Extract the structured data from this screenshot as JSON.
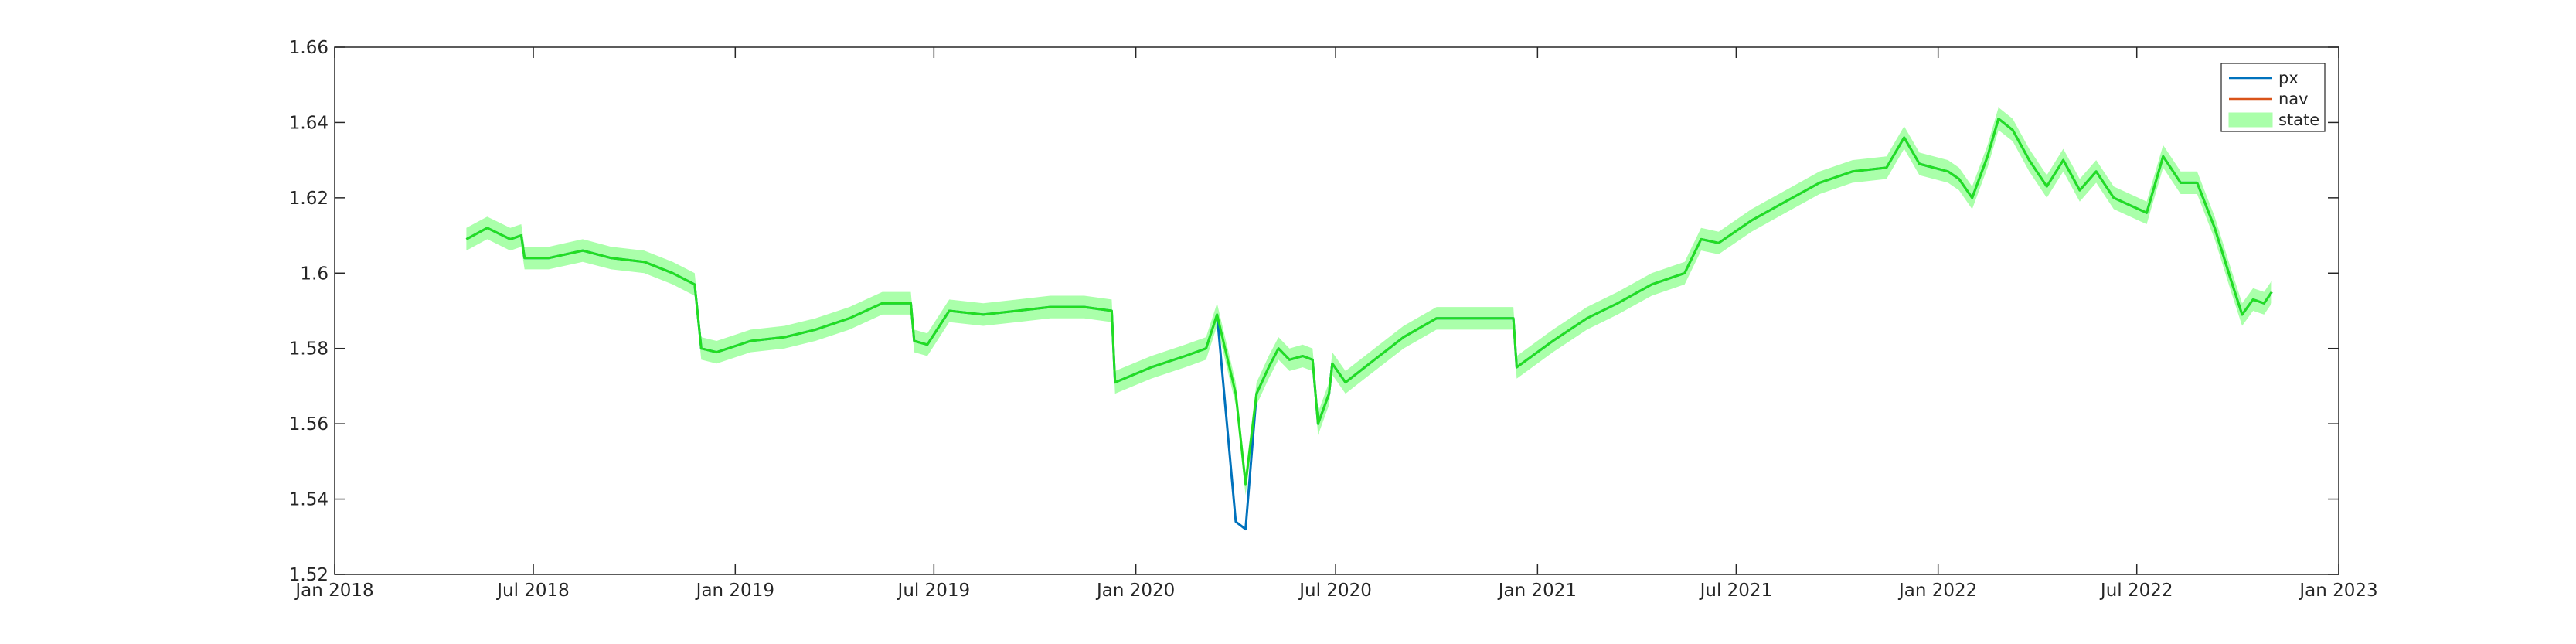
{
  "chart_data": {
    "type": "line",
    "title": "",
    "xlabel": "",
    "ylabel": "",
    "grid": false,
    "legend_placement": "top-right",
    "xlim": [
      "2018-01-01",
      "2023-01-01"
    ],
    "ylim": [
      1.52,
      1.66
    ],
    "x_ticks": [
      {
        "date": "2018-01-01",
        "label": "Jan 2018"
      },
      {
        "date": "2018-07-01",
        "label": "Jul 2018"
      },
      {
        "date": "2019-01-01",
        "label": "Jan 2019"
      },
      {
        "date": "2019-07-01",
        "label": "Jul 2019"
      },
      {
        "date": "2020-01-01",
        "label": "Jan 2020"
      },
      {
        "date": "2020-07-01",
        "label": "Jul 2020"
      },
      {
        "date": "2021-01-01",
        "label": "Jan 2021"
      },
      {
        "date": "2021-07-01",
        "label": "Jul 2021"
      },
      {
        "date": "2022-01-01",
        "label": "Jan 2022"
      },
      {
        "date": "2022-07-01",
        "label": "Jul 2022"
      },
      {
        "date": "2023-01-01",
        "label": "Jan 2023"
      }
    ],
    "y_ticks": [
      {
        "value": 1.52,
        "label": "1.52"
      },
      {
        "value": 1.54,
        "label": "1.54"
      },
      {
        "value": 1.56,
        "label": "1.56"
      },
      {
        "value": 1.58,
        "label": "1.58"
      },
      {
        "value": 1.6,
        "label": "1.6"
      },
      {
        "value": 1.62,
        "label": "1.62"
      },
      {
        "value": 1.64,
        "label": "1.64"
      },
      {
        "value": 1.66,
        "label": "1.66"
      }
    ],
    "legend": [
      {
        "key": "px",
        "label": "px"
      },
      {
        "key": "nav",
        "label": "nav"
      },
      {
        "key": "state",
        "label": "state"
      }
    ],
    "colors": {
      "px": "#0072BD",
      "nav": "#D95319",
      "state_band": "#AAFFAA",
      "state_line": "#22DD22",
      "axes": "#262626"
    },
    "state_band_halfwidth": 0.003,
    "x": [
      "2018-05-01",
      "2018-05-20",
      "2018-06-10",
      "2018-06-20",
      "2018-06-23",
      "2018-07-15",
      "2018-08-15",
      "2018-09-10",
      "2018-10-10",
      "2018-11-05",
      "2018-11-25",
      "2018-12-01",
      "2018-12-15",
      "2019-01-15",
      "2019-02-15",
      "2019-03-15",
      "2019-04-15",
      "2019-05-15",
      "2019-06-10",
      "2019-06-13",
      "2019-06-25",
      "2019-07-15",
      "2019-08-15",
      "2019-09-15",
      "2019-10-15",
      "2019-11-15",
      "2019-12-10",
      "2019-12-13",
      "2020-01-15",
      "2020-02-15",
      "2020-03-05",
      "2020-03-15",
      "2020-04-01",
      "2020-04-10",
      "2020-04-20",
      "2020-05-01",
      "2020-05-10",
      "2020-05-20",
      "2020-06-01",
      "2020-06-10",
      "2020-06-15",
      "2020-06-25",
      "2020-06-28",
      "2020-07-10",
      "2020-08-01",
      "2020-09-01",
      "2020-10-01",
      "2020-10-20",
      "2020-11-01",
      "2020-12-10",
      "2020-12-13",
      "2021-01-15",
      "2021-02-15",
      "2021-03-15",
      "2021-04-15",
      "2021-05-15",
      "2021-05-30",
      "2021-06-15",
      "2021-07-15",
      "2021-08-15",
      "2021-09-15",
      "2021-10-15",
      "2021-11-15",
      "2021-12-01",
      "2021-12-15",
      "2022-01-10",
      "2022-01-20",
      "2022-02-01",
      "2022-02-15",
      "2022-02-25",
      "2022-03-10",
      "2022-03-25",
      "2022-04-10",
      "2022-04-25",
      "2022-05-10",
      "2022-05-25",
      "2022-06-10",
      "2022-06-25",
      "2022-07-10",
      "2022-07-25",
      "2022-08-10",
      "2022-08-25",
      "2022-09-10",
      "2022-09-25",
      "2022-10-05",
      "2022-10-15",
      "2022-10-25",
      "2022-11-01"
    ],
    "series": [
      {
        "name": "px",
        "values": [
          1.609,
          1.612,
          1.609,
          1.61,
          1.604,
          1.604,
          1.606,
          1.604,
          1.603,
          1.6,
          1.597,
          1.58,
          1.579,
          1.582,
          1.583,
          1.585,
          1.588,
          1.592,
          1.592,
          1.582,
          1.581,
          1.59,
          1.589,
          1.59,
          1.591,
          1.591,
          1.59,
          1.571,
          1.575,
          1.578,
          1.58,
          1.589,
          1.534,
          1.532,
          1.568,
          1.575,
          1.58,
          1.577,
          1.578,
          1.577,
          1.56,
          1.568,
          1.576,
          1.571,
          1.576,
          1.583,
          1.588,
          1.588,
          1.588,
          1.588,
          1.575,
          1.582,
          1.588,
          1.592,
          1.597,
          1.6,
          1.609,
          1.608,
          1.614,
          1.619,
          1.624,
          1.627,
          1.628,
          1.636,
          1.629,
          1.627,
          1.625,
          1.62,
          1.631,
          1.641,
          1.638,
          1.63,
          1.623,
          1.63,
          1.622,
          1.627,
          1.62,
          1.618,
          1.616,
          1.631,
          1.624,
          1.624,
          1.612,
          1.598,
          1.589,
          1.593,
          1.592,
          1.595
        ]
      },
      {
        "name": "nav",
        "values": [
          1.609,
          1.612,
          1.609,
          1.61,
          1.604,
          1.604,
          1.606,
          1.604,
          1.603,
          1.6,
          1.597,
          1.58,
          1.579,
          1.582,
          1.583,
          1.585,
          1.588,
          1.592,
          1.592,
          1.582,
          1.581,
          1.59,
          1.589,
          1.59,
          1.591,
          1.591,
          1.59,
          1.571,
          1.575,
          1.578,
          1.58,
          1.589,
          1.568,
          1.544,
          1.568,
          1.575,
          1.58,
          1.577,
          1.578,
          1.577,
          1.56,
          1.568,
          1.576,
          1.571,
          1.576,
          1.583,
          1.588,
          1.588,
          1.588,
          1.588,
          1.575,
          1.582,
          1.588,
          1.592,
          1.597,
          1.6,
          1.609,
          1.608,
          1.614,
          1.619,
          1.624,
          1.627,
          1.628,
          1.636,
          1.629,
          1.627,
          1.625,
          1.62,
          1.631,
          1.641,
          1.638,
          1.63,
          1.623,
          1.63,
          1.622,
          1.627,
          1.62,
          1.618,
          1.616,
          1.631,
          1.624,
          1.624,
          1.612,
          1.598,
          1.589,
          1.593,
          1.592,
          1.595
        ]
      },
      {
        "name": "state",
        "values": [
          1.609,
          1.612,
          1.609,
          1.61,
          1.604,
          1.604,
          1.606,
          1.604,
          1.603,
          1.6,
          1.597,
          1.58,
          1.579,
          1.582,
          1.583,
          1.585,
          1.588,
          1.592,
          1.592,
          1.582,
          1.581,
          1.59,
          1.589,
          1.59,
          1.591,
          1.591,
          1.59,
          1.571,
          1.575,
          1.578,
          1.58,
          1.589,
          1.568,
          1.544,
          1.568,
          1.575,
          1.58,
          1.577,
          1.578,
          1.577,
          1.56,
          1.568,
          1.576,
          1.571,
          1.576,
          1.583,
          1.588,
          1.588,
          1.588,
          1.588,
          1.575,
          1.582,
          1.588,
          1.592,
          1.597,
          1.6,
          1.609,
          1.608,
          1.614,
          1.619,
          1.624,
          1.627,
          1.628,
          1.636,
          1.629,
          1.627,
          1.625,
          1.62,
          1.631,
          1.641,
          1.638,
          1.63,
          1.623,
          1.63,
          1.622,
          1.627,
          1.62,
          1.618,
          1.616,
          1.631,
          1.624,
          1.624,
          1.612,
          1.598,
          1.589,
          1.593,
          1.592,
          1.595
        ]
      }
    ]
  }
}
